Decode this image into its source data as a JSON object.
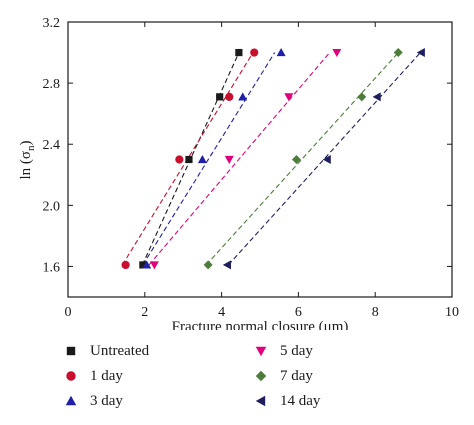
{
  "chart_data": {
    "type": "scatter",
    "xlabel": "Fracture normal closure (μm)",
    "ylabel_main": "ln (σ",
    "ylabel_sub": "n",
    "ylabel_close": ")",
    "xlim": [
      0,
      10
    ],
    "ylim": [
      1.4,
      3.2
    ],
    "xticks": [
      0,
      2,
      4,
      6,
      8,
      10
    ],
    "yticks": [
      1.6,
      2.0,
      2.4,
      2.8,
      3.2
    ],
    "ytick_labels": [
      "1.6",
      "2.0",
      "2.4",
      "2.8",
      "3.2"
    ],
    "series": [
      {
        "name": "Untreated",
        "marker": "square",
        "color": "#1a1a1a",
        "x": [
          1.95,
          3.15,
          3.95,
          4.45
        ],
        "y": [
          1.61,
          2.3,
          2.71,
          3.0
        ]
      },
      {
        "name": "1 day",
        "marker": "circle",
        "color": "#c8102e",
        "x": [
          1.5,
          2.9,
          4.2,
          4.85
        ],
        "y": [
          1.61,
          2.3,
          2.71,
          3.0
        ]
      },
      {
        "name": "3 day",
        "marker": "triangle-up",
        "color": "#1f1fa8",
        "x": [
          2.05,
          3.5,
          4.55,
          5.55
        ],
        "y": [
          1.61,
          2.3,
          2.71,
          3.0
        ]
      },
      {
        "name": "5 day",
        "marker": "triangle-down",
        "color": "#e0007a",
        "x": [
          2.25,
          4.2,
          5.75,
          7.0
        ],
        "y": [
          1.61,
          2.3,
          2.71,
          3.0
        ]
      },
      {
        "name": "7 day",
        "marker": "diamond",
        "color": "#4e7d3a",
        "x": [
          3.65,
          5.95,
          7.65,
          8.6
        ],
        "y": [
          1.61,
          2.3,
          2.71,
          3.0
        ]
      },
      {
        "name": "14 day",
        "marker": "triangle-left",
        "color": "#1f1f5e",
        "x": [
          4.15,
          6.75,
          8.05,
          9.2
        ],
        "y": [
          1.61,
          2.3,
          2.71,
          3.0
        ]
      }
    ],
    "fit_lines": "dashed",
    "legend_position": "below"
  },
  "legend": {
    "items": [
      {
        "label": "Untreated",
        "series": 0
      },
      {
        "label": "1 day",
        "series": 1
      },
      {
        "label": "3 day",
        "series": 2
      },
      {
        "label": "5 day",
        "series": 3
      },
      {
        "label": "7 day",
        "series": 4
      },
      {
        "label": "14 day",
        "series": 5
      }
    ]
  }
}
